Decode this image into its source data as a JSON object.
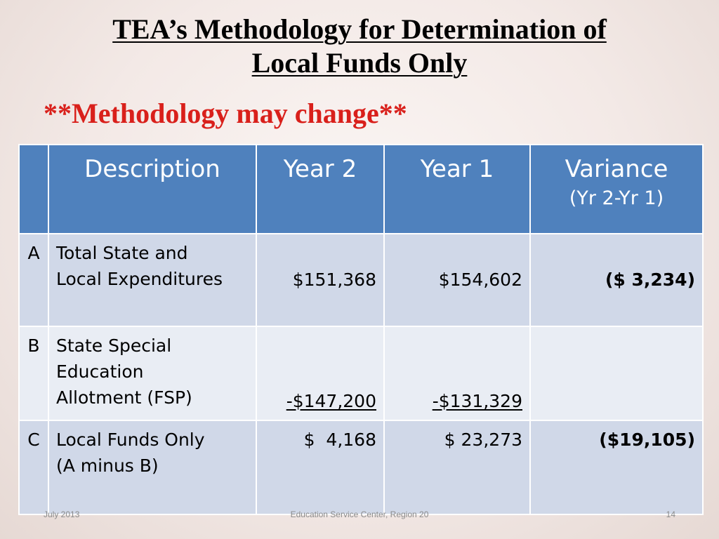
{
  "title": {
    "line1": "TEA’s Methodology for Determination of",
    "line2": "Local Funds Only"
  },
  "note": "**Methodology may change**",
  "table": {
    "headers": {
      "blank": "",
      "description": "Description",
      "year2": "Year 2",
      "year1": "Year 1",
      "variance": "Variance",
      "variance_sub": "(Yr 2-Yr 1)"
    },
    "rows": [
      {
        "letter": "A",
        "description_line1": "Total State and",
        "description_line2": "Local Expenditures",
        "year2": "$151,368",
        "year1": "$154,602",
        "variance": "($ 3,234)"
      },
      {
        "letter": "B",
        "description_line1": "State Special",
        "description_line2": "Education",
        "description_line3": "Allotment (FSP)",
        "year2": "-$147,200",
        "year1": "-$131,329",
        "variance": ""
      },
      {
        "letter": "C",
        "description_line1": "Local Funds Only",
        "description_line2": "(A minus B)",
        "year2": "$  4,168",
        "year1": "$ 23,273",
        "variance": "($19,105)"
      }
    ]
  },
  "footer": {
    "date": "July 2013",
    "center": "Education Service Center, Region 20",
    "page": "14"
  },
  "colors": {
    "header_bg": "#4f81bd",
    "row_odd": "#d0d8e8",
    "row_even": "#e9edf4",
    "negative": "#e01b1b",
    "note": "#d9201b"
  }
}
